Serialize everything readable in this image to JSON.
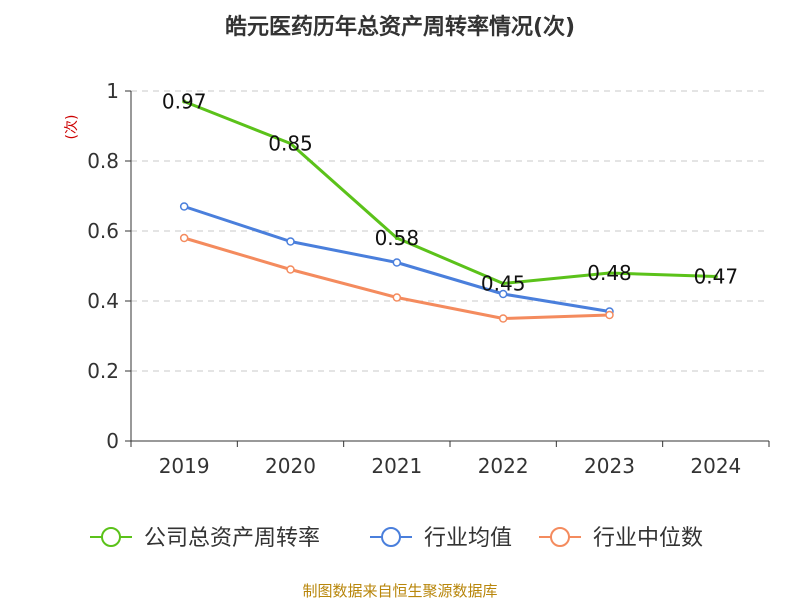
{
  "chart_data": {
    "type": "line",
    "title": "皓元医药历年总资产周转率情况(次)",
    "ylabel": "(次)",
    "xlabel": "",
    "categories": [
      "2019",
      "2020",
      "2021",
      "2022",
      "2023",
      "2024"
    ],
    "ylim": [
      0,
      1
    ],
    "yticks": [
      0,
      0.2,
      0.4,
      0.6,
      0.8,
      1
    ],
    "ytick_labels": [
      "0",
      "0.2",
      "0.4",
      "0.6",
      "0.8",
      "1"
    ],
    "grid": true,
    "legend_position": "bottom",
    "series": [
      {
        "name": "公司总资产周转率",
        "color": "#5bc21a",
        "values": [
          0.97,
          0.85,
          0.58,
          0.45,
          0.48,
          0.47
        ],
        "labels": [
          "0.97",
          "0.85",
          "0.58",
          "0.45",
          "0.48",
          "0.47"
        ]
      },
      {
        "name": "行业均值",
        "color": "#4a7fdc",
        "values": [
          0.67,
          0.57,
          0.51,
          0.42,
          0.37,
          null
        ]
      },
      {
        "name": "行业中位数",
        "color": "#f48b5e",
        "values": [
          0.58,
          0.49,
          0.41,
          0.35,
          0.36,
          null
        ]
      }
    ],
    "source": "制图数据来自恒生聚源数据库"
  }
}
